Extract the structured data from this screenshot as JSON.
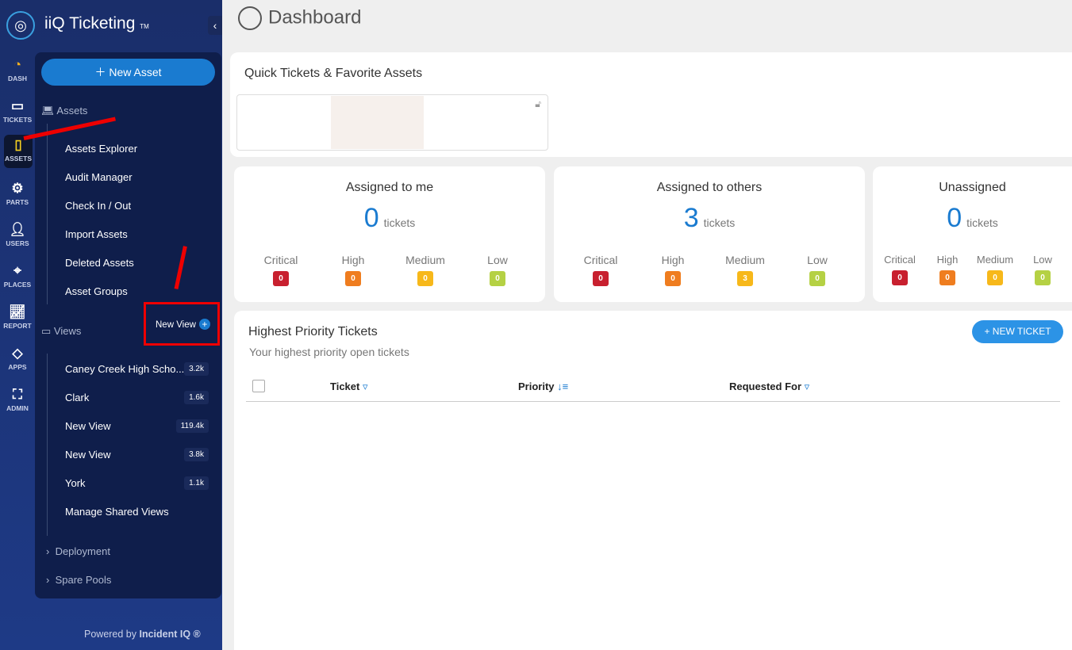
{
  "app": {
    "name": "iiQ Ticketing",
    "tm": "TM",
    "powered_prefix": "Powered by",
    "powered_brand": "Incident IQ ®"
  },
  "rail": [
    {
      "label": "DASH",
      "icon": "gauge-icon"
    },
    {
      "label": "TICKETS",
      "icon": "ticket-icon"
    },
    {
      "label": "ASSETS",
      "icon": "tablet-icon"
    },
    {
      "label": "PARTS",
      "icon": "gear-icon"
    },
    {
      "label": "USERS",
      "icon": "user-icon"
    },
    {
      "label": "PLACES",
      "icon": "map-pin-icon"
    },
    {
      "label": "REPORT",
      "icon": "chart-icon"
    },
    {
      "label": "APPS",
      "icon": "apps-icon"
    },
    {
      "label": "ADMIN",
      "icon": "org-chart-icon"
    }
  ],
  "panel": {
    "new_asset": "New Asset",
    "assets_section": "Assets",
    "asset_items": [
      "Assets Explorer",
      "Audit Manager",
      "Check In / Out",
      "Import Assets",
      "Deleted Assets",
      "Asset Groups"
    ],
    "views_section": "Views",
    "new_view": "New View",
    "views": [
      {
        "label": "Caney Creek High Scho...",
        "count": "3.2k"
      },
      {
        "label": "Clark",
        "count": "1.6k"
      },
      {
        "label": "New View",
        "count": "119.4k"
      },
      {
        "label": "New View",
        "count": "3.8k"
      },
      {
        "label": "York",
        "count": "1.1k"
      }
    ],
    "manage_shared": "Manage Shared Views",
    "deployment": "Deployment",
    "spare_pools": "Spare Pools"
  },
  "main": {
    "title": "Dashboard",
    "quick": "Quick Tickets & Favorite Assets",
    "priority_labels": [
      "Critical",
      "High",
      "Medium",
      "Low"
    ],
    "priority_colors": [
      "#c8202f",
      "#ef7d1f",
      "#f7b81a",
      "#b5d144"
    ],
    "tickets_word": "tickets",
    "stats": [
      {
        "title": "Assigned to me",
        "count": "0",
        "values": [
          "0",
          "0",
          "0",
          "0"
        ]
      },
      {
        "title": "Assigned to others",
        "count": "3",
        "values": [
          "0",
          "0",
          "3",
          "0"
        ]
      },
      {
        "title": "Unassigned",
        "count": "0",
        "values": [
          "0",
          "0",
          "0",
          "0"
        ]
      }
    ],
    "hp": {
      "title": "Highest Priority Tickets",
      "subtitle": "Your highest priority open tickets",
      "new_ticket": "+ NEW TICKET",
      "columns": [
        "Ticket",
        "Priority",
        "Requested For"
      ]
    }
  }
}
